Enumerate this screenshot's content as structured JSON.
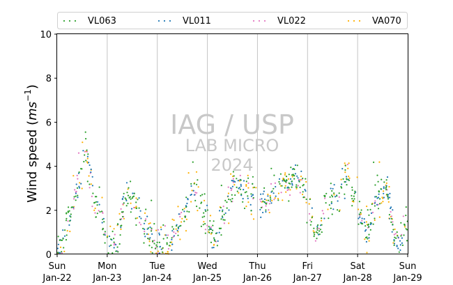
{
  "chart_data": {
    "type": "scatter",
    "ylabel_main": "Wind speed (",
    "ylabel_unit": "ms",
    "ylabel_exp": "−1",
    "ylabel_close": ")",
    "ylim": [
      0,
      10
    ],
    "yticks": [
      "0",
      "2",
      "4",
      "6",
      "8",
      "10"
    ],
    "xlim_days": [
      0,
      7
    ],
    "xticks": [
      {
        "day": 0,
        "weekday": "Sun",
        "date": "Jan-22"
      },
      {
        "day": 1,
        "weekday": "Mon",
        "date": "Jan-23"
      },
      {
        "day": 2,
        "weekday": "Tue",
        "date": "Jan-24"
      },
      {
        "day": 3,
        "weekday": "Wed",
        "date": "Jan-25"
      },
      {
        "day": 4,
        "weekday": "Thu",
        "date": "Jan-26"
      },
      {
        "day": 5,
        "weekday": "Fri",
        "date": "Jan-27"
      },
      {
        "day": 6,
        "weekday": "Sat",
        "date": "Jan-28"
      },
      {
        "day": 7,
        "weekday": "Sun",
        "date": "Jan-29"
      }
    ],
    "grid": "vertical",
    "legend_placement": "top",
    "watermark": [
      "IAG / USP",
      "LAB MICRO",
      "2024"
    ],
    "series": [
      {
        "name": "VL063",
        "color": "#2ca02c",
        "values": []
      },
      {
        "name": "VL011",
        "color": "#1f77b4",
        "values": []
      },
      {
        "name": "VL022",
        "color": "#e377c2",
        "values": []
      },
      {
        "name": "VA070",
        "color": "#ffb000",
        "values": []
      }
    ],
    "profile": [
      [
        0.0,
        0.2
      ],
      [
        0.1,
        0.5
      ],
      [
        0.2,
        1.2
      ],
      [
        0.3,
        2.0
      ],
      [
        0.4,
        3.0
      ],
      [
        0.5,
        4.0
      ],
      [
        0.55,
        4.8
      ],
      [
        0.6,
        4.5
      ],
      [
        0.65,
        3.5
      ],
      [
        0.7,
        2.8
      ],
      [
        0.8,
        2.2
      ],
      [
        0.9,
        1.8
      ],
      [
        0.95,
        1.0
      ],
      [
        1.0,
        0.5
      ],
      [
        1.1,
        0.4
      ],
      [
        1.2,
        0.5
      ],
      [
        1.25,
        1.0
      ],
      [
        1.3,
        2.2
      ],
      [
        1.4,
        2.5
      ],
      [
        1.5,
        2.5
      ],
      [
        1.6,
        2.0
      ],
      [
        1.7,
        1.5
      ],
      [
        1.8,
        1.0
      ],
      [
        1.9,
        0.8
      ],
      [
        2.0,
        0.5
      ],
      [
        2.1,
        0.4
      ],
      [
        2.2,
        0.6
      ],
      [
        2.3,
        0.9
      ],
      [
        2.4,
        1.2
      ],
      [
        2.5,
        1.5
      ],
      [
        2.6,
        2.2
      ],
      [
        2.7,
        3.2
      ],
      [
        2.8,
        2.8
      ],
      [
        2.9,
        2.0
      ],
      [
        3.0,
        1.5
      ],
      [
        3.1,
        0.8
      ],
      [
        3.2,
        0.5
      ],
      [
        3.3,
        1.8
      ],
      [
        3.4,
        2.3
      ],
      [
        3.5,
        2.9
      ],
      [
        3.6,
        3.3
      ],
      [
        3.7,
        3.1
      ],
      [
        3.8,
        3.0
      ],
      [
        3.9,
        2.5
      ],
      [
        4.0,
        2.4
      ],
      [
        4.1,
        2.2
      ],
      [
        4.2,
        2.4
      ],
      [
        4.3,
        2.9
      ],
      [
        4.4,
        3.0
      ],
      [
        4.5,
        3.2
      ],
      [
        4.6,
        3.0
      ],
      [
        4.7,
        3.4
      ],
      [
        4.8,
        3.6
      ],
      [
        4.9,
        3.1
      ],
      [
        5.0,
        2.2
      ],
      [
        5.1,
        1.3
      ],
      [
        5.2,
        1.1
      ],
      [
        5.3,
        1.7
      ],
      [
        5.4,
        2.3
      ],
      [
        5.5,
        2.5
      ],
      [
        5.6,
        2.1
      ],
      [
        5.7,
        3.2
      ],
      [
        5.8,
        3.7
      ],
      [
        5.9,
        2.9
      ],
      [
        6.0,
        2.2
      ],
      [
        6.1,
        1.6
      ],
      [
        6.2,
        0.8
      ],
      [
        6.3,
        2.1
      ],
      [
        6.4,
        2.9
      ],
      [
        6.5,
        3.0
      ],
      [
        6.6,
        2.8
      ],
      [
        6.7,
        1.2
      ],
      [
        6.8,
        0.5
      ],
      [
        6.9,
        0.9
      ],
      [
        7.0,
        1.4
      ]
    ]
  }
}
